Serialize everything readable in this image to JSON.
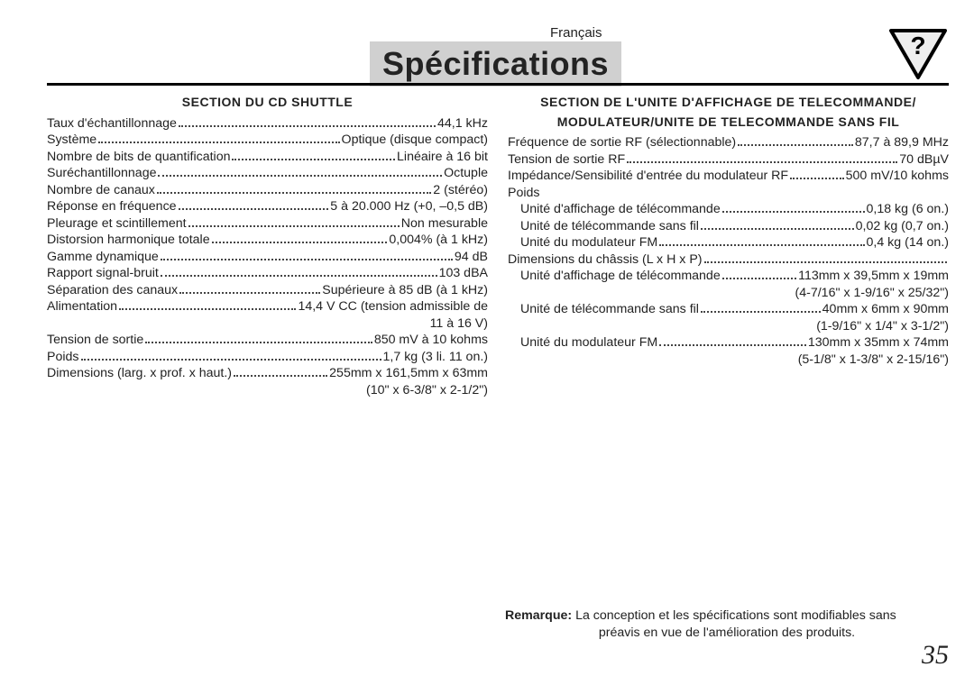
{
  "language_label": "Français",
  "title": "Spécifications",
  "page_number": "35",
  "note": {
    "label": "Remarque:",
    "line1_rest": "La conception et les spécifications sont modifiables sans",
    "line2": "préavis en vue de l'amélioration des produits."
  },
  "left": {
    "heading": "SECTION DU CD SHUTTLE",
    "rows": [
      {
        "label": "Taux d'échantillonnage",
        "value": "44,1 kHz"
      },
      {
        "label": "Système",
        "value": "Optique (disque compact)"
      },
      {
        "label": "Nombre de bits de quantification",
        "value": "Linéaire à 16 bit"
      },
      {
        "label": "Suréchantillonnage",
        "value": "Octuple"
      },
      {
        "label": "Nombre de canaux",
        "value": "2 (stéréo)"
      },
      {
        "label": "Réponse en fréquence",
        "value": "5 à 20.000 Hz (+0, –0,5 dB)"
      },
      {
        "label": "Pleurage et scintillement",
        "value": "Non mesurable"
      },
      {
        "label": "Distorsion harmonique totale",
        "value": "0,004% (à 1 kHz)"
      },
      {
        "label": "Gamme dynamique",
        "value": "94 dB"
      },
      {
        "label": "Rapport signal-bruit",
        "value": "103 dBA"
      },
      {
        "label": "Séparation des canaux",
        "value": "Supérieure à 85 dB (à 1 kHz)"
      },
      {
        "label": "Alimentation",
        "value": "14,4 V CC (tension admissible de"
      },
      {
        "right_only": true,
        "value": "11 à 16 V)"
      },
      {
        "label": "Tension de sortie",
        "value": "850 mV à 10 kohms"
      },
      {
        "label": "Poids",
        "value": "1,7 kg (3 li. 11 on.)"
      },
      {
        "label": "Dimensions (larg. x prof. x haut.)",
        "value": "255mm x 161,5mm x 63mm"
      },
      {
        "right_only": true,
        "value": "(10\" x 6-3/8\" x 2-1/2\")"
      }
    ]
  },
  "right": {
    "heading_line1": "SECTION DE L'UNITE D'AFFICHAGE DE TELECOMMANDE/",
    "heading_line2": "MODULATEUR/UNITE DE TELECOMMANDE SANS FIL",
    "rows": [
      {
        "label": "Fréquence de sortie RF (sélectionnable)",
        "value": "87,7 à 89,9 MHz"
      },
      {
        "label": "Tension de sortie RF",
        "value": "70 dBµV"
      },
      {
        "label": "Impédance/Sensibilité d'entrée du modulateur RF",
        "value": "500 mV/10 kohms",
        "tight": true
      },
      {
        "label": "Poids",
        "plain": true
      },
      {
        "label": "Unité d'affichage de télécommande",
        "value": "0,18 kg (6 on.)",
        "indent": true
      },
      {
        "label": "Unité de télécommande sans fil",
        "value": "0,02 kg (0,7 on.)",
        "indent": true
      },
      {
        "label": "Unité du modulateur FM",
        "value": "0,4 kg (14 on.)",
        "indent": true
      },
      {
        "label": "Dimensions du châssis (L x H x P)",
        "value": ""
      },
      {
        "label": "Unité d'affichage de télécommande",
        "value": "113mm x 39,5mm x 19mm",
        "indent": true
      },
      {
        "right_only": true,
        "value": "(4-7/16\" x 1-9/16\" x 25/32\")"
      },
      {
        "label": "Unité de télécommande sans fil",
        "value": "40mm x 6mm x 90mm",
        "indent": true
      },
      {
        "right_only": true,
        "value": "(1-9/16\" x 1/4\" x 3-1/2\")"
      },
      {
        "label": "Unité du modulateur FM",
        "value": "130mm x 35mm x 74mm",
        "indent": true
      },
      {
        "right_only": true,
        "value": "(5-1/8\" x 1-3/8\" x 2-15/16\")"
      }
    ]
  },
  "colors": {
    "title_bg": "#d0d0d0",
    "text": "#222222",
    "rule": "#000000",
    "icon_fill": "#eeeeee",
    "icon_stroke": "#000000"
  }
}
